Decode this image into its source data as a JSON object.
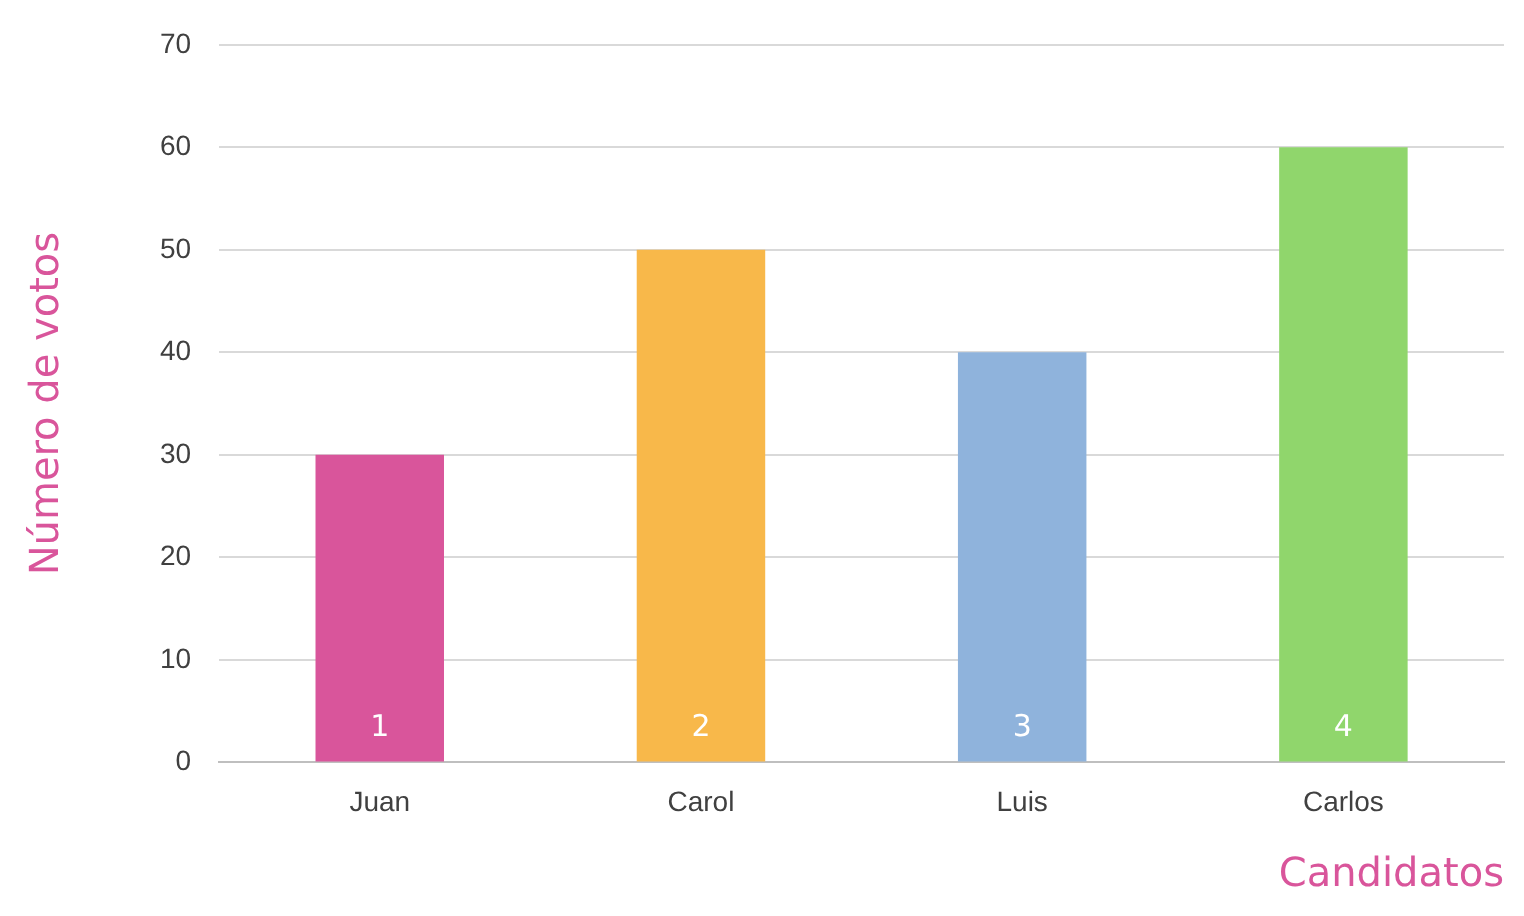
{
  "chart_data": {
    "type": "bar",
    "xlabel": "Candidatos",
    "ylabel": "Número de votos",
    "categories": [
      "Juan",
      "Carol",
      "Luis",
      "Carlos"
    ],
    "values": [
      30,
      50,
      40,
      60
    ],
    "colors": [
      "#d9559b",
      "#f8b84a",
      "#8fb3dc",
      "#90d66c"
    ],
    "ylim": [
      0,
      70
    ],
    "yticks": [
      0,
      10,
      20,
      30,
      40,
      50,
      60,
      70
    ],
    "grid": "y",
    "legend": false,
    "annotations": [
      "1",
      "2",
      "3",
      "4"
    ]
  }
}
